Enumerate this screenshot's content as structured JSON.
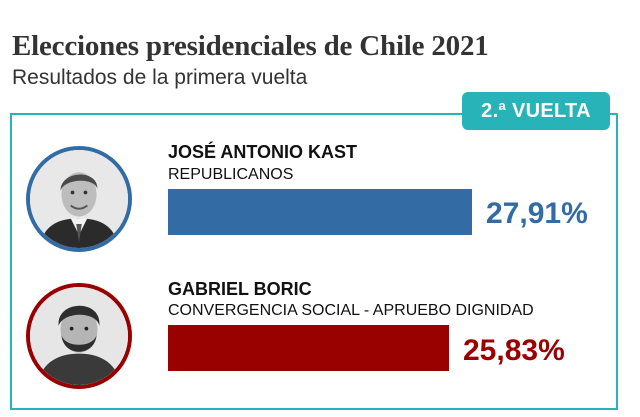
{
  "header": {
    "title": "Elecciones presidenciales de Chile 2021",
    "subtitle": "Resultados de la primera vuelta"
  },
  "badge": {
    "label": "2.ª VUELTA",
    "color": "#28b3b8"
  },
  "chart_data": {
    "type": "bar",
    "orientation": "horizontal",
    "categories": [
      "JOSÉ ANTONIO KAST",
      "GABRIEL BORIC"
    ],
    "values": [
      27.91,
      25.83
    ],
    "value_labels": [
      "27,91%",
      "25,83%"
    ],
    "parties": [
      "REPUBLICANOS",
      "CONVERGENCIA SOCIAL - APRUEBO DIGNIDAD"
    ],
    "colors": [
      "#336ca4",
      "#990000"
    ],
    "title": "Elecciones presidenciales de Chile 2021",
    "subtitle": "Resultados de la primera vuelta",
    "xlabel": "",
    "ylabel": "",
    "xlim": [
      0,
      31.2
    ],
    "grid": false,
    "legend": "none"
  },
  "candidates": [
    {
      "name": "JOSÉ ANTONIO KAST",
      "party": "REPUBLICANOS",
      "pct_label": "27,91%",
      "color": "#336ca4",
      "photo_icon": "candidate-photo-icon"
    },
    {
      "name": "GABRIEL BORIC",
      "party": "CONVERGENCIA SOCIAL - APRUEBO DIGNIDAD",
      "pct_label": "25,83%",
      "color": "#990000",
      "photo_icon": "candidate-photo-icon"
    }
  ]
}
